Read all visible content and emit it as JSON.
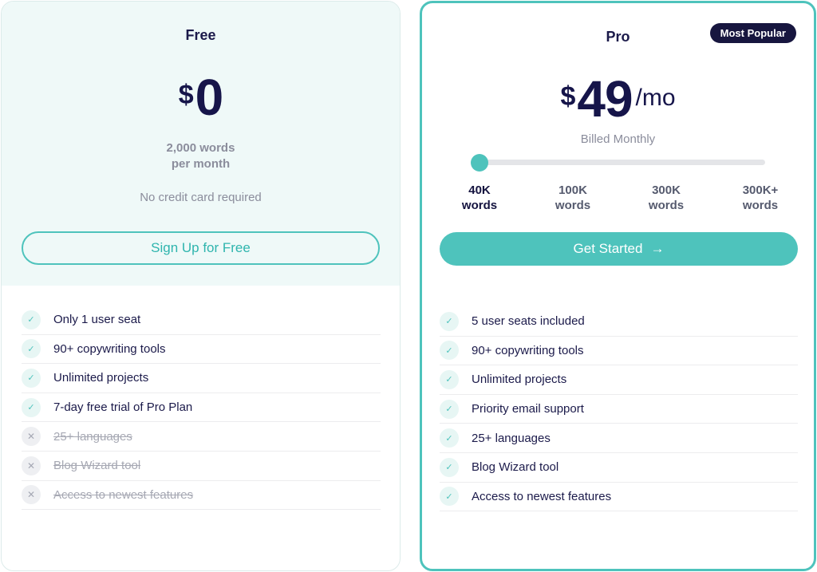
{
  "free_plan": {
    "name": "Free",
    "currency": "$",
    "price": "0",
    "words_line1": "2,000 words",
    "words_line2": "per month",
    "note": "No credit card required",
    "cta_label": "Sign Up for Free",
    "features": [
      {
        "text": "Only 1 user seat",
        "included": true,
        "icon": "check-icon"
      },
      {
        "text": "90+ copywriting tools",
        "included": true,
        "icon": "check-icon"
      },
      {
        "text": "Unlimited projects",
        "included": true,
        "icon": "check-icon"
      },
      {
        "text": "7-day free trial of Pro Plan",
        "included": true,
        "icon": "check-icon"
      },
      {
        "text": "25+ languages",
        "included": false,
        "icon": "x-icon"
      },
      {
        "text": "Blog Wizard tool",
        "included": false,
        "icon": "x-icon"
      },
      {
        "text": "Access to newest features",
        "included": false,
        "icon": "x-icon"
      }
    ]
  },
  "pro_plan": {
    "name": "Pro",
    "badge": "Most Popular",
    "currency": "$",
    "price": "49",
    "period": "/mo",
    "billing": "Billed Monthly",
    "word_tier_slider": {
      "selected_index": 0,
      "options": [
        {
          "line1": "40K",
          "line2": "words"
        },
        {
          "line1": "100K",
          "line2": "words"
        },
        {
          "line1": "300K",
          "line2": "words"
        },
        {
          "line1": "300K+",
          "line2": "words"
        }
      ]
    },
    "cta_label": "Get Started",
    "cta_icon": "arrow-right-icon",
    "features": [
      {
        "text": "5 user seats included",
        "included": true,
        "icon": "check-icon"
      },
      {
        "text": "90+ copywriting tools",
        "included": true,
        "icon": "check-icon"
      },
      {
        "text": "Unlimited projects",
        "included": true,
        "icon": "check-icon"
      },
      {
        "text": "Priority email support",
        "included": true,
        "icon": "check-icon"
      },
      {
        "text": "25+ languages",
        "included": true,
        "icon": "check-icon"
      },
      {
        "text": "Blog Wizard tool",
        "included": true,
        "icon": "check-icon"
      },
      {
        "text": "Access to newest features",
        "included": true,
        "icon": "check-icon"
      }
    ]
  },
  "colors": {
    "accent": "#4ec3bc",
    "navy": "#17163f",
    "muted_text": "#8b8d9c",
    "free_header_bg": "#eff9f8"
  }
}
